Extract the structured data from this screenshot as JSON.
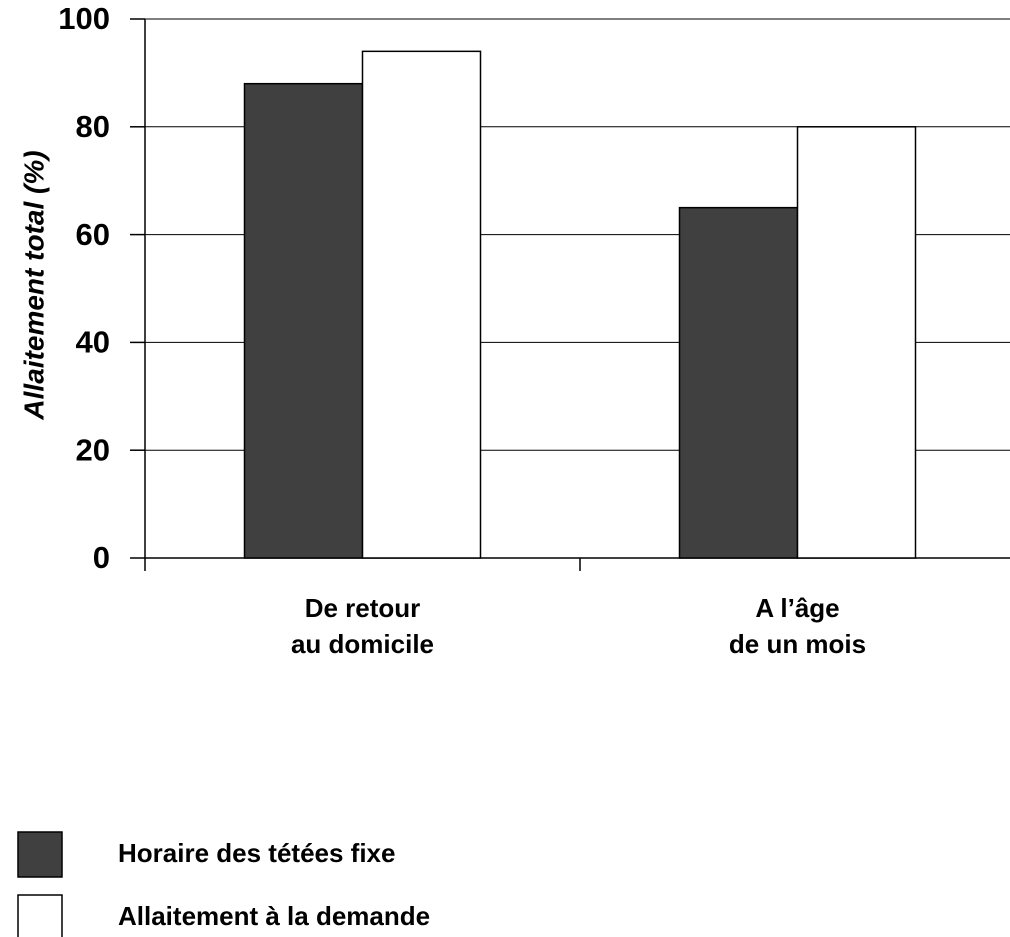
{
  "chart_data": {
    "type": "bar",
    "ylabel": "Allaitement total (%)",
    "categories": [
      [
        "De retour",
        "au domicile"
      ],
      [
        "A l’âge",
        "de un mois"
      ]
    ],
    "series": [
      {
        "name": "Horaire des tétées fixe",
        "color": "#404040",
        "values": [
          88,
          65
        ]
      },
      {
        "name": "Allaitement à la demande",
        "color": "#ffffff",
        "values": [
          94,
          80
        ]
      }
    ],
    "ylim": [
      0,
      100
    ],
    "yticks": [
      0,
      20,
      40,
      60,
      80,
      100
    ],
    "grid": true
  }
}
